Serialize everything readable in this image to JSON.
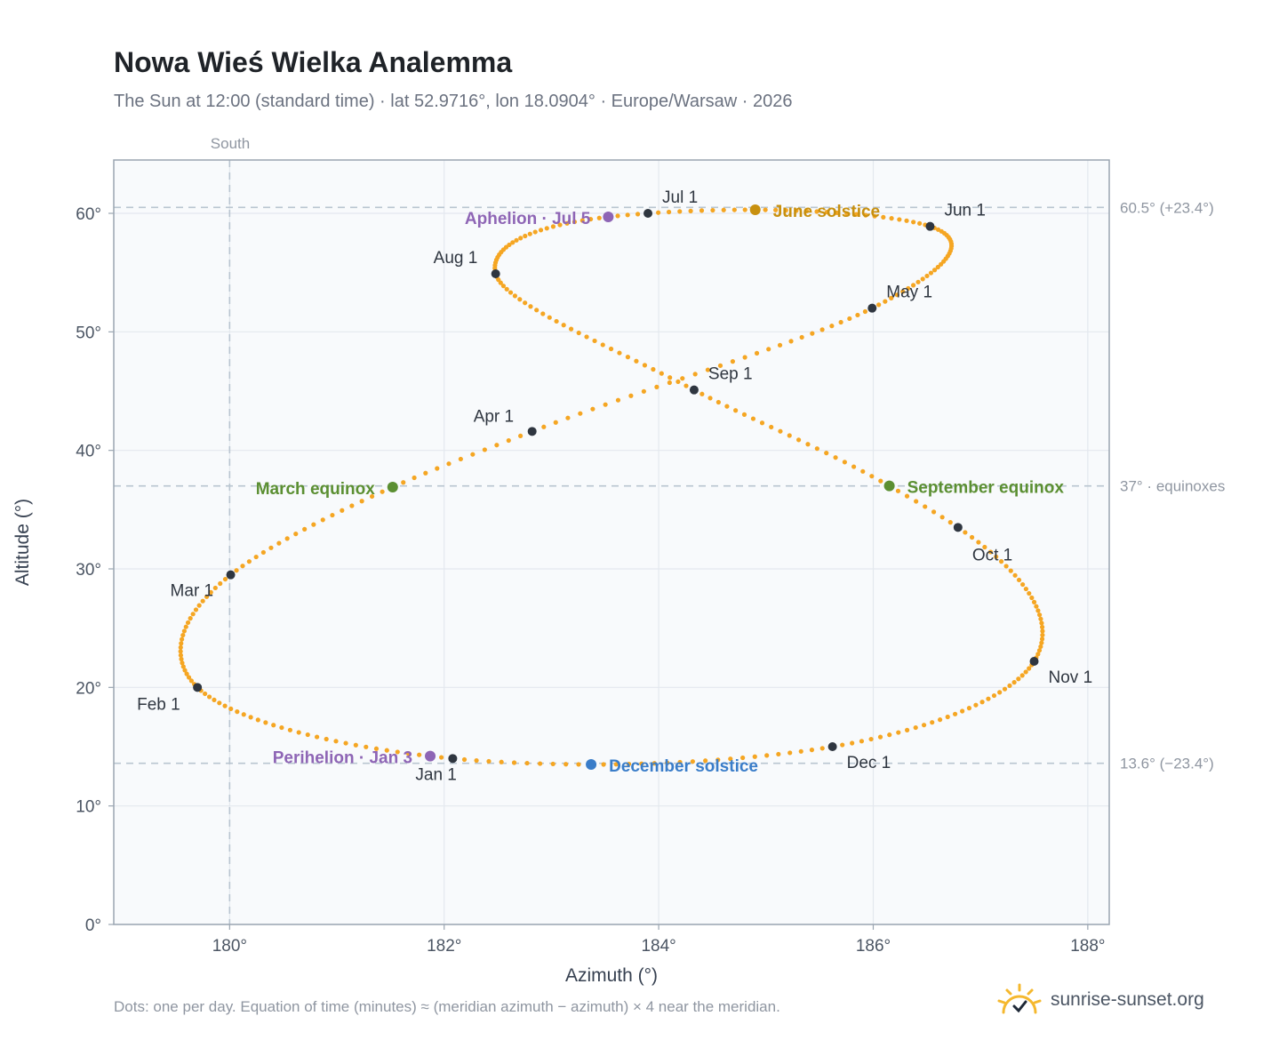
{
  "header": {
    "title": "Nowa Wieś Wielka Analemma",
    "subtitle": "The Sun at 12:00 (standard time) · lat 52.9716°, lon 18.0904° · Europe/Warsaw · 2026"
  },
  "footer": {
    "note": "Dots: one per day. Equation of time (minutes) ≈ (meridian azimuth − azimuth) × 4 near the meridian.",
    "brand": "sunrise-sunset.org",
    "brand_icon": "sun-check-icon"
  },
  "colors": {
    "curve": "#f5a623",
    "month_marker": "#2f3640",
    "june_solstice": "#c8900f",
    "december_solstice": "#3a7dc9",
    "equinox": "#5b8f32",
    "apsis": "#8e65b5",
    "reference_line": "#b9c5d0",
    "plot_bg": "#f8fafc",
    "frame": "#9aa5b1",
    "grid": "#e3e8ee"
  },
  "chart_data": {
    "type": "scatter",
    "title": "Nowa Wieś Wielka Analemma",
    "xlabel": "Azimuth (°)",
    "ylabel": "Altitude (°)",
    "xlim": [
      178.92,
      188.2
    ],
    "ylim": [
      0,
      64.5
    ],
    "xticks": [
      180,
      182,
      184,
      186,
      188
    ],
    "xtick_labels": [
      "180°",
      "182°",
      "184°",
      "186°",
      "188°"
    ],
    "yticks": [
      0,
      10,
      20,
      30,
      40,
      50,
      60
    ],
    "ytick_labels": [
      "0°",
      "10°",
      "20°",
      "30°",
      "40°",
      "50°",
      "60°"
    ],
    "grid": true,
    "dots_per_year": 365,
    "south_azimuth": 180,
    "south_label": "South",
    "reference_lines": [
      {
        "altitude": 60.5,
        "label": "60.5° (+23.4°)"
      },
      {
        "altitude": 37,
        "label": "37° · equinoxes"
      },
      {
        "altitude": 13.6,
        "label": "13.6° (−23.4°)"
      }
    ],
    "month_markers": [
      {
        "label": "Jan 1",
        "day": 1,
        "az": 182.08,
        "alt": 14.0
      },
      {
        "label": "Feb 1",
        "day": 32,
        "az": 179.7,
        "alt": 20.0
      },
      {
        "label": "Mar 1",
        "day": 60,
        "az": 180.01,
        "alt": 29.5
      },
      {
        "label": "Apr 1",
        "day": 91,
        "az": 182.82,
        "alt": 41.6
      },
      {
        "label": "May 1",
        "day": 121,
        "az": 185.99,
        "alt": 52.0
      },
      {
        "label": "Jun 1",
        "day": 152,
        "az": 186.53,
        "alt": 58.9
      },
      {
        "label": "Jul 1",
        "day": 182,
        "az": 183.9,
        "alt": 60.0
      },
      {
        "label": "Aug 1",
        "day": 213,
        "az": 182.48,
        "alt": 54.9
      },
      {
        "label": "Sep 1",
        "day": 244,
        "az": 184.33,
        "alt": 45.1
      },
      {
        "label": "Oct 1",
        "day": 274,
        "az": 186.79,
        "alt": 33.5
      },
      {
        "label": "Nov 1",
        "day": 305,
        "az": 187.5,
        "alt": 22.2
      },
      {
        "label": "Dec 1",
        "day": 335,
        "az": 185.62,
        "alt": 15.0
      }
    ],
    "events": [
      {
        "label": "June solstice",
        "day": 172,
        "az": 184.9,
        "alt": 60.3,
        "kind": "june_solstice"
      },
      {
        "label": "December solstice",
        "day": 355,
        "az": 183.37,
        "alt": 13.5,
        "kind": "december_solstice"
      },
      {
        "label": "March equinox",
        "day": 79,
        "az": 181.52,
        "alt": 36.9,
        "kind": "equinox"
      },
      {
        "label": "September equinox",
        "day": 266,
        "az": 186.15,
        "alt": 37.0,
        "kind": "equinox"
      },
      {
        "label": "Perihelion · Jan 3",
        "day": 3,
        "az": 181.87,
        "alt": 14.2,
        "kind": "apsis"
      },
      {
        "label": "Aphelion · Jul 5",
        "day": 186,
        "az": 183.53,
        "alt": 59.7,
        "kind": "apsis"
      }
    ]
  }
}
